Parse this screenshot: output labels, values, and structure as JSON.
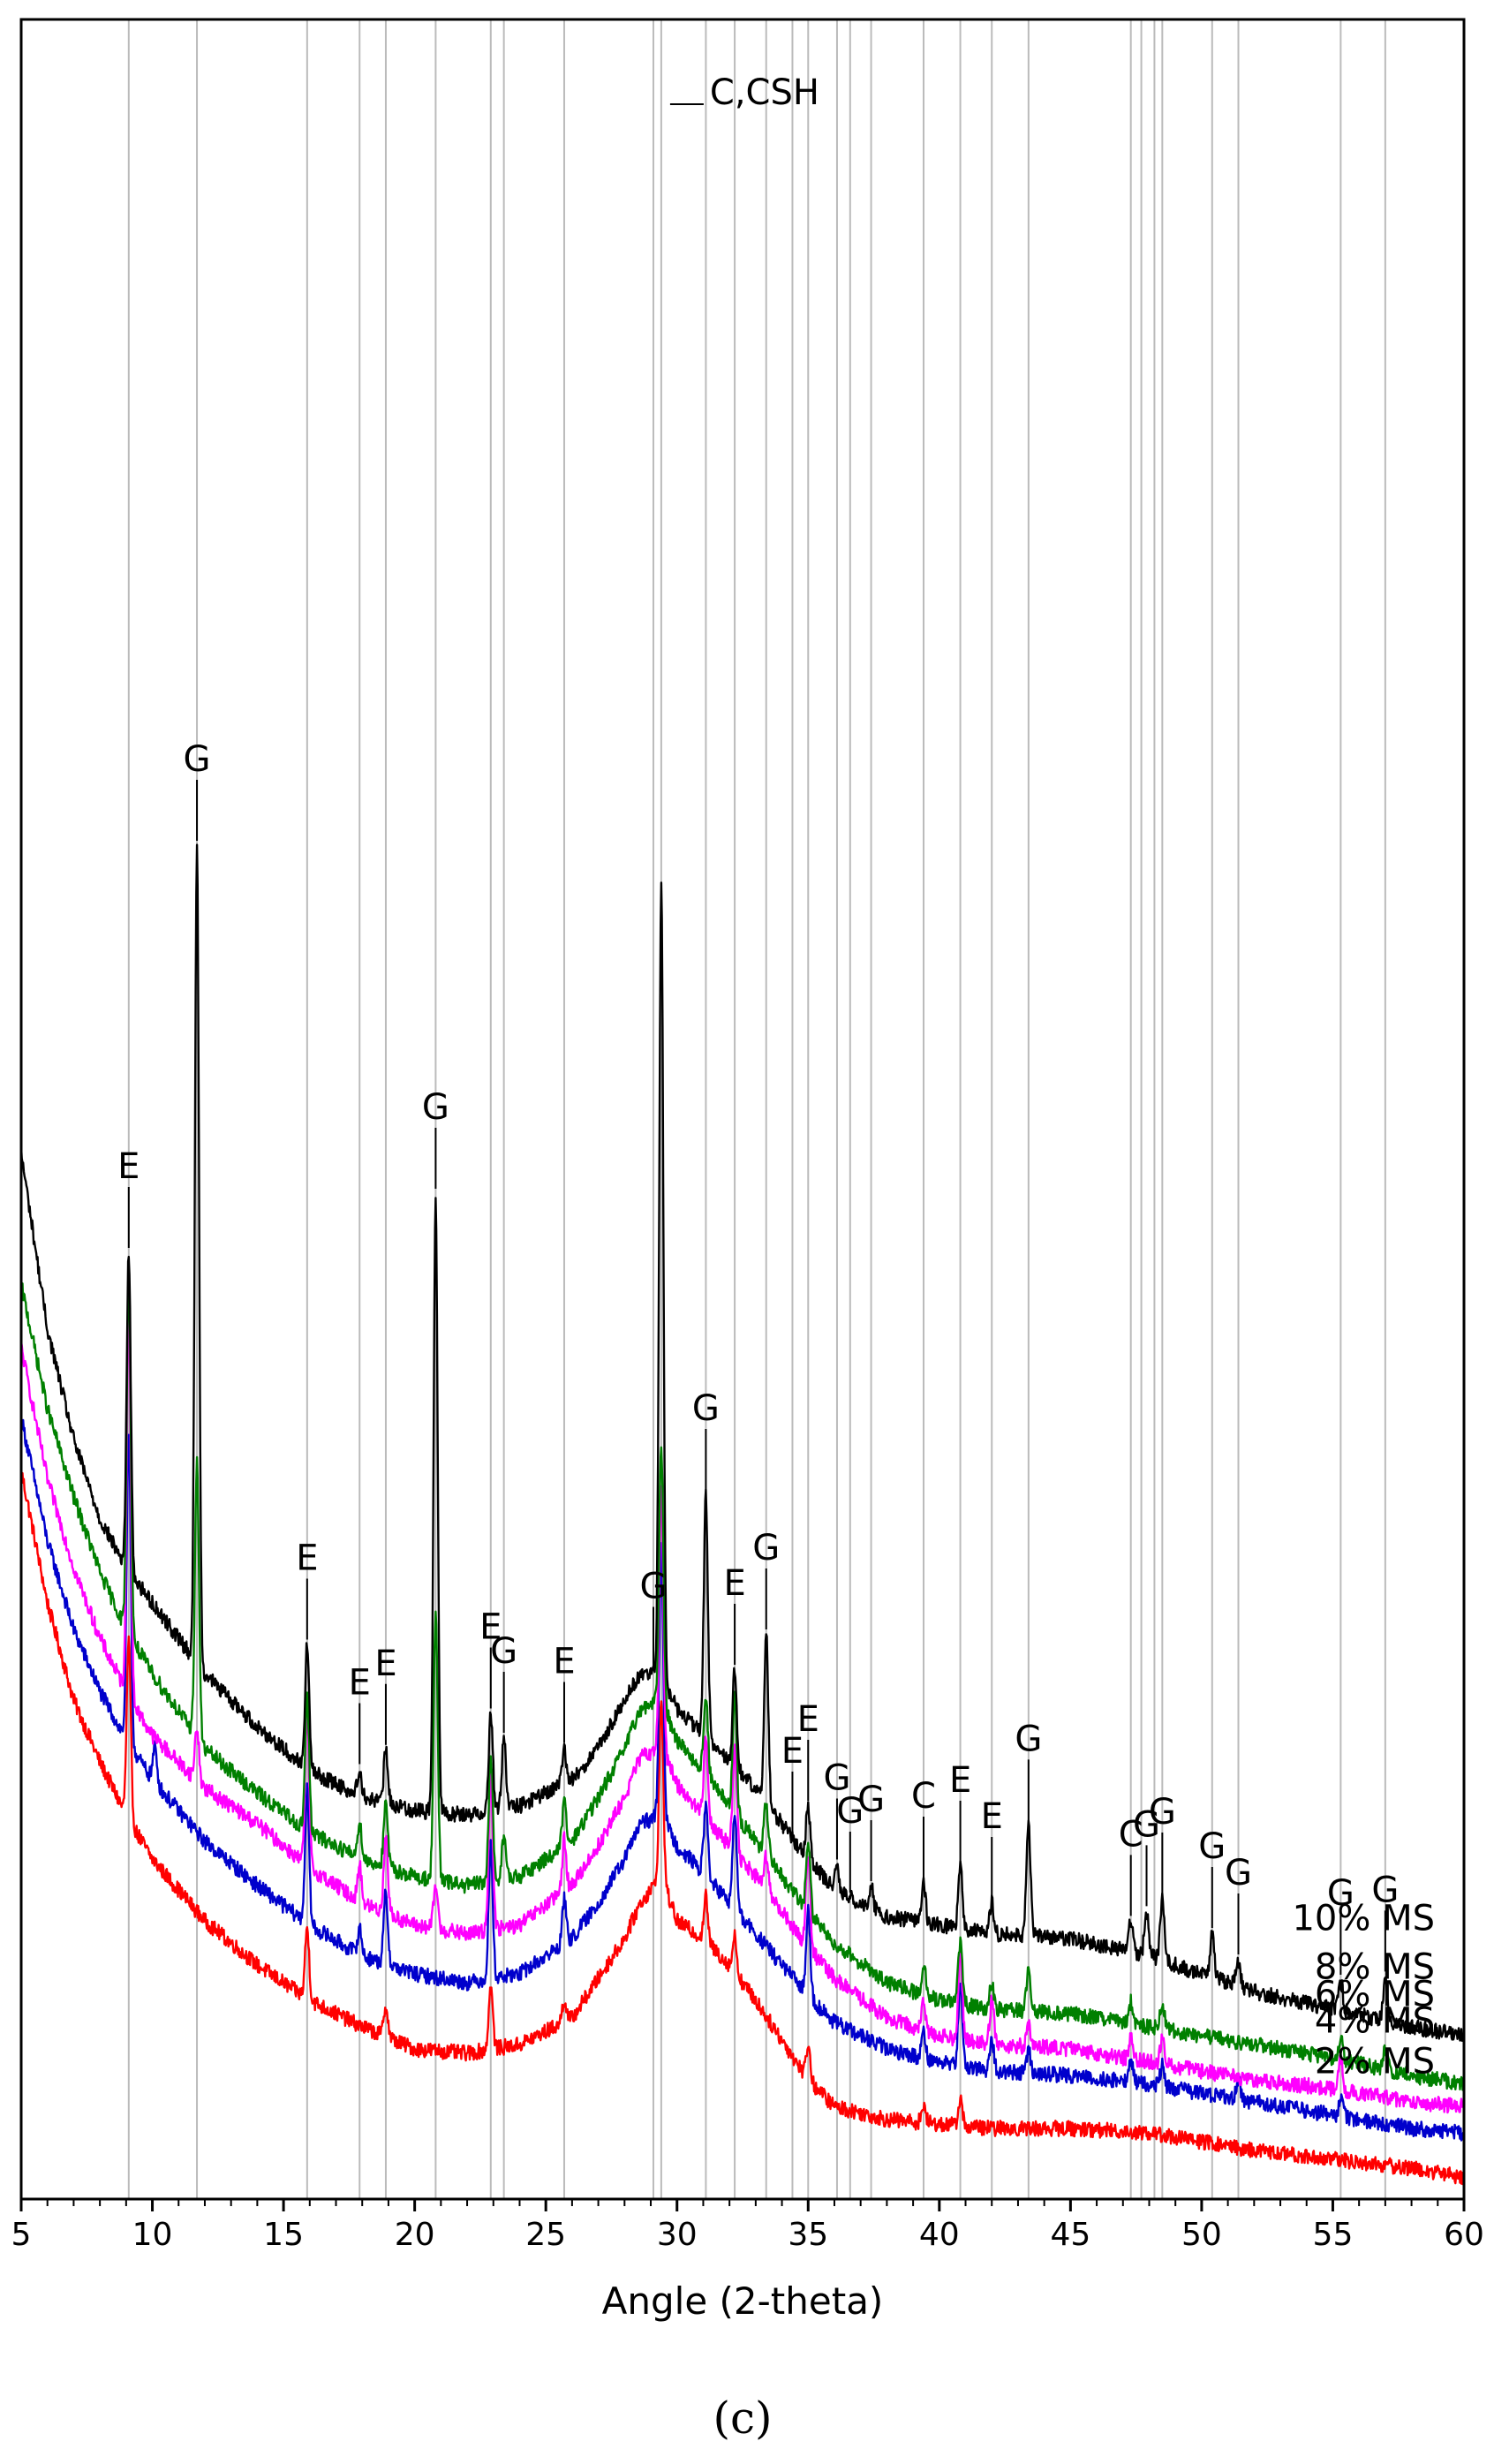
{
  "chart_data": {
    "type": "line",
    "xlabel": "Angle (2-theta)",
    "ylabel": "",
    "xlim": [
      5,
      60
    ],
    "x_ticks": [
      "5",
      "10",
      "15",
      "20",
      "25",
      "30",
      "35",
      "40",
      "45",
      "50",
      "55",
      "60"
    ],
    "grid": "vertical reference lines at peak positions",
    "legend": "labels placed beside each curve on the right",
    "panel_label": "(c)",
    "colors": {
      "10% MS": "#000000",
      "8% MS": "#008000",
      "6% MS": "#ff00ff",
      "4% MS": "#0000cc",
      "2% MS": "#ff0000",
      "frame": "#000000",
      "reference_lines": "#bbbbbb"
    },
    "reference_lines_2theta": [
      9.1,
      11.7,
      15.9,
      17.9,
      18.9,
      20.8,
      22.9,
      23.4,
      25.7,
      29.1,
      29.4,
      31.1,
      32.2,
      33.4,
      34.4,
      35.0,
      36.1,
      36.6,
      37.4,
      39.4,
      40.8,
      42.0,
      43.4,
      47.3,
      47.7,
      48.2,
      48.5,
      50.4,
      51.4,
      55.3,
      57.0
    ],
    "peak_labels": [
      {
        "label": "E",
        "x": 9.1
      },
      {
        "label": "G",
        "x": 11.7
      },
      {
        "label": "E",
        "x": 15.9
      },
      {
        "label": "E",
        "x": 17.9
      },
      {
        "label": "E",
        "x": 18.9
      },
      {
        "label": "G",
        "x": 20.8
      },
      {
        "label": "E",
        "x": 22.9
      },
      {
        "label": "G",
        "x": 23.4
      },
      {
        "label": "E",
        "x": 25.7
      },
      {
        "label": "G",
        "x": 29.1
      },
      {
        "label": "C,CSH",
        "x": 29.4
      },
      {
        "label": "G",
        "x": 31.1
      },
      {
        "label": "E",
        "x": 32.2
      },
      {
        "label": "G",
        "x": 33.4
      },
      {
        "label": "E",
        "x": 34.4
      },
      {
        "label": "E",
        "x": 35.0
      },
      {
        "label": "G",
        "x": 36.1
      },
      {
        "label": "G",
        "x": 36.6
      },
      {
        "label": "G",
        "x": 37.4
      },
      {
        "label": "C",
        "x": 39.4
      },
      {
        "label": "E",
        "x": 40.8
      },
      {
        "label": "E",
        "x": 42.0
      },
      {
        "label": "G",
        "x": 43.4
      },
      {
        "label": "C",
        "x": 47.3
      },
      {
        "label": "G",
        "x": 47.9
      },
      {
        "label": "G",
        "x": 48.5
      },
      {
        "label": "G",
        "x": 50.4
      },
      {
        "label": "G",
        "x": 51.4
      },
      {
        "label": "G",
        "x": 55.3
      },
      {
        "label": "G",
        "x": 57.0
      }
    ],
    "background_x": [
      5,
      6,
      7,
      8,
      9,
      10,
      12,
      14,
      16,
      18,
      20,
      22,
      24,
      26,
      27,
      28,
      28.6,
      29.4,
      30,
      31,
      32,
      33,
      34,
      35,
      36,
      38,
      40,
      42,
      45,
      48,
      50,
      52,
      55,
      58,
      60
    ],
    "series": [
      {
        "name": "10% MS",
        "background": [
          2.3,
          1.9,
          1.65,
          1.47,
          1.36,
          1.28,
          1.12,
          1.0,
          0.9,
          0.84,
          0.81,
          0.8,
          0.82,
          0.88,
          0.95,
          1.06,
          1.12,
          1.12,
          1.04,
          0.98,
          0.92,
          0.86,
          0.78,
          0.7,
          0.63,
          0.57,
          0.55,
          0.53,
          0.52,
          0.48,
          0.44,
          0.4,
          0.36,
          0.32,
          0.3
        ],
        "peaks": [
          {
            "x": 9.1,
            "h": 0.72
          },
          {
            "x": 11.7,
            "h": 1.85
          },
          {
            "x": 15.9,
            "h": 0.28
          },
          {
            "x": 17.9,
            "h": 0.06
          },
          {
            "x": 18.9,
            "h": 0.12
          },
          {
            "x": 20.8,
            "h": 1.4
          },
          {
            "x": 22.9,
            "h": 0.22
          },
          {
            "x": 23.4,
            "h": 0.16
          },
          {
            "x": 25.7,
            "h": 0.08
          },
          {
            "x": 29.4,
            "h": 1.8
          },
          {
            "x": 31.1,
            "h": 0.55
          },
          {
            "x": 32.2,
            "h": 0.22
          },
          {
            "x": 33.4,
            "h": 0.38
          },
          {
            "x": 35.0,
            "h": 0.12
          },
          {
            "x": 36.1,
            "h": 0.06
          },
          {
            "x": 37.4,
            "h": 0.05
          },
          {
            "x": 39.4,
            "h": 0.09
          },
          {
            "x": 40.8,
            "h": 0.14
          },
          {
            "x": 42.0,
            "h": 0.07
          },
          {
            "x": 43.4,
            "h": 0.25
          },
          {
            "x": 47.3,
            "h": 0.07
          },
          {
            "x": 47.9,
            "h": 0.1
          },
          {
            "x": 48.5,
            "h": 0.14
          },
          {
            "x": 50.4,
            "h": 0.1
          },
          {
            "x": 51.4,
            "h": 0.06
          },
          {
            "x": 55.3,
            "h": 0.07
          },
          {
            "x": 57.0,
            "h": 0.1
          }
        ]
      },
      {
        "name": "8% MS",
        "background": [
          2.0,
          1.72,
          1.52,
          1.35,
          1.22,
          1.12,
          0.95,
          0.85,
          0.76,
          0.7,
          0.66,
          0.64,
          0.66,
          0.74,
          0.84,
          0.95,
          1.04,
          1.06,
          0.97,
          0.9,
          0.82,
          0.74,
          0.66,
          0.58,
          0.51,
          0.42,
          0.38,
          0.36,
          0.35,
          0.32,
          0.3,
          0.28,
          0.25,
          0.21,
          0.19
        ],
        "peaks": [
          {
            "x": 9.1,
            "h": 0.82
          },
          {
            "x": 11.7,
            "h": 0.62
          },
          {
            "x": 15.9,
            "h": 0.3
          },
          {
            "x": 17.9,
            "h": 0.08
          },
          {
            "x": 18.9,
            "h": 0.14
          },
          {
            "x": 20.8,
            "h": 0.6
          },
          {
            "x": 22.9,
            "h": 0.28
          },
          {
            "x": 23.4,
            "h": 0.1
          },
          {
            "x": 25.7,
            "h": 0.1
          },
          {
            "x": 29.4,
            "h": 0.58
          },
          {
            "x": 31.1,
            "h": 0.18
          },
          {
            "x": 32.2,
            "h": 0.26
          },
          {
            "x": 33.4,
            "h": 0.12
          },
          {
            "x": 35.0,
            "h": 0.16
          },
          {
            "x": 39.4,
            "h": 0.07
          },
          {
            "x": 40.8,
            "h": 0.14
          },
          {
            "x": 42.0,
            "h": 0.06
          },
          {
            "x": 43.4,
            "h": 0.1
          },
          {
            "x": 47.3,
            "h": 0.05
          },
          {
            "x": 48.5,
            "h": 0.06
          },
          {
            "x": 55.3,
            "h": 0.05
          },
          {
            "x": 57.0,
            "h": 0.05
          }
        ]
      },
      {
        "name": "6% MS",
        "background": [
          1.86,
          1.56,
          1.36,
          1.2,
          1.08,
          0.98,
          0.86,
          0.78,
          0.68,
          0.6,
          0.55,
          0.53,
          0.55,
          0.64,
          0.73,
          0.84,
          0.93,
          0.95,
          0.87,
          0.8,
          0.73,
          0.66,
          0.58,
          0.5,
          0.43,
          0.34,
          0.3,
          0.28,
          0.27,
          0.24,
          0.22,
          0.2,
          0.18,
          0.15,
          0.14
        ],
        "peaks": [
          {
            "x": 9.1,
            "h": 0.88
          },
          {
            "x": 11.7,
            "h": 0.12
          },
          {
            "x": 15.9,
            "h": 0.34
          },
          {
            "x": 17.9,
            "h": 0.08
          },
          {
            "x": 18.9,
            "h": 0.18
          },
          {
            "x": 20.8,
            "h": 0.1
          },
          {
            "x": 22.9,
            "h": 0.36
          },
          {
            "x": 25.7,
            "h": 0.12
          },
          {
            "x": 29.4,
            "h": 0.6
          },
          {
            "x": 31.1,
            "h": 0.18
          },
          {
            "x": 32.2,
            "h": 0.24
          },
          {
            "x": 33.4,
            "h": 0.08
          },
          {
            "x": 35.0,
            "h": 0.22
          },
          {
            "x": 39.4,
            "h": 0.06
          },
          {
            "x": 40.8,
            "h": 0.2
          },
          {
            "x": 42.0,
            "h": 0.1
          },
          {
            "x": 43.4,
            "h": 0.05
          },
          {
            "x": 47.3,
            "h": 0.05
          },
          {
            "x": 48.5,
            "h": 0.06
          },
          {
            "x": 55.3,
            "h": 0.07
          }
        ]
      },
      {
        "name": "4% MS",
        "background": [
          1.7,
          1.42,
          1.22,
          1.08,
          0.97,
          0.88,
          0.74,
          0.64,
          0.55,
          0.48,
          0.44,
          0.42,
          0.44,
          0.52,
          0.6,
          0.7,
          0.78,
          0.8,
          0.73,
          0.67,
          0.6,
          0.53,
          0.46,
          0.39,
          0.33,
          0.27,
          0.24,
          0.22,
          0.21,
          0.19,
          0.17,
          0.15,
          0.12,
          0.09,
          0.08
        ],
        "peaks": [
          {
            "x": 9.1,
            "h": 0.7
          },
          {
            "x": 10.1,
            "h": 0.08
          },
          {
            "x": 15.9,
            "h": 0.3
          },
          {
            "x": 17.9,
            "h": 0.06
          },
          {
            "x": 18.9,
            "h": 0.16
          },
          {
            "x": 22.9,
            "h": 0.3
          },
          {
            "x": 25.7,
            "h": 0.1
          },
          {
            "x": 29.4,
            "h": 0.62
          },
          {
            "x": 31.1,
            "h": 0.16
          },
          {
            "x": 32.2,
            "h": 0.22
          },
          {
            "x": 35.0,
            "h": 0.2
          },
          {
            "x": 39.4,
            "h": 0.06
          },
          {
            "x": 40.8,
            "h": 0.18
          },
          {
            "x": 42.0,
            "h": 0.07
          },
          {
            "x": 43.4,
            "h": 0.05
          },
          {
            "x": 47.3,
            "h": 0.05
          },
          {
            "x": 48.5,
            "h": 0.05
          },
          {
            "x": 51.4,
            "h": 0.05
          },
          {
            "x": 55.3,
            "h": 0.04
          }
        ]
      },
      {
        "name": "2% MS",
        "background": [
          1.58,
          1.28,
          1.06,
          0.92,
          0.8,
          0.7,
          0.56,
          0.46,
          0.38,
          0.32,
          0.27,
          0.26,
          0.28,
          0.34,
          0.43,
          0.52,
          0.6,
          0.66,
          0.56,
          0.52,
          0.46,
          0.38,
          0.29,
          0.2,
          0.14,
          0.11,
          0.1,
          0.09,
          0.09,
          0.08,
          0.06,
          0.04,
          0.02,
          0.0,
          -0.02
        ],
        "peaks": [
          {
            "x": 9.1,
            "h": 0.4
          },
          {
            "x": 15.9,
            "h": 0.16
          },
          {
            "x": 18.9,
            "h": 0.07
          },
          {
            "x": 22.9,
            "h": 0.14
          },
          {
            "x": 25.7,
            "h": 0.05
          },
          {
            "x": 29.4,
            "h": 0.4
          },
          {
            "x": 31.1,
            "h": 0.1
          },
          {
            "x": 32.2,
            "h": 0.08
          },
          {
            "x": 35.0,
            "h": 0.08
          },
          {
            "x": 39.4,
            "h": 0.04
          },
          {
            "x": 40.8,
            "h": 0.06
          }
        ]
      }
    ]
  }
}
